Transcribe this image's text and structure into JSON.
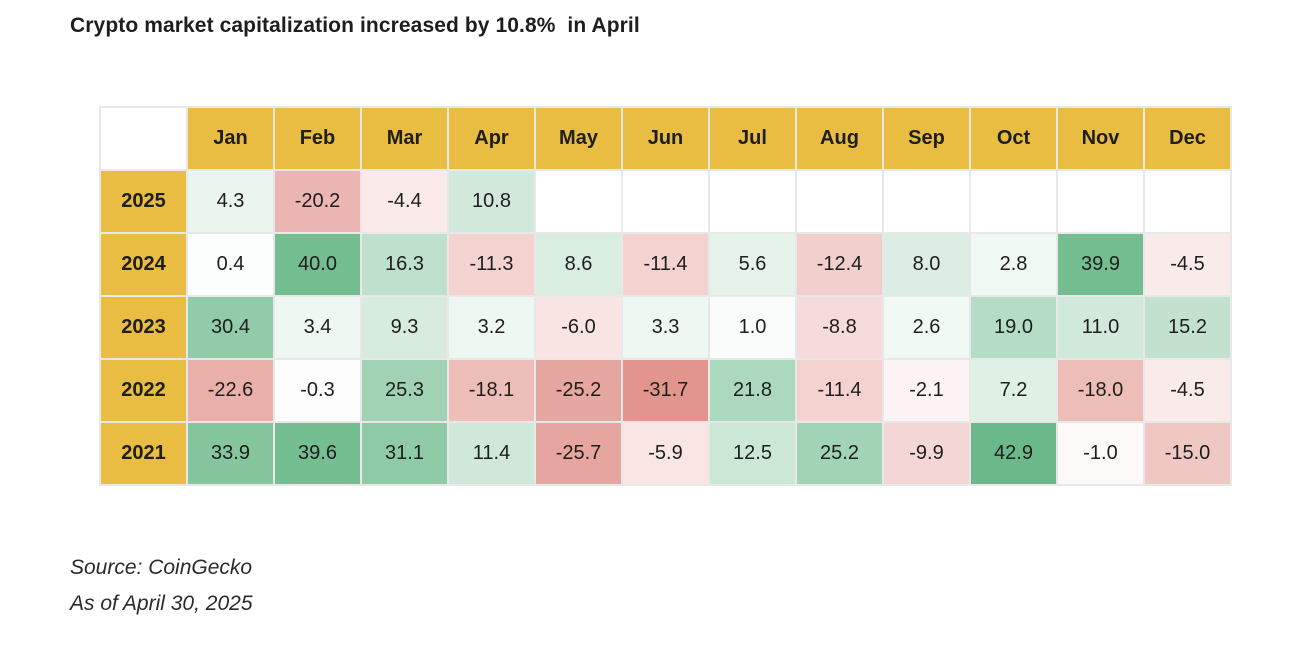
{
  "title": "Crypto market capitalization increased by 10.8%  in April",
  "source": "Source: CoinGecko",
  "as_of": "As of April 30, 2025",
  "colors": {
    "header_bg": "#e8bd42",
    "positive": "#6bb98a",
    "negative": "#d9756b",
    "neutral": "#ffffff"
  },
  "chart_data": {
    "type": "heatmap",
    "title": "Crypto market capitalization increased by 10.8%  in April",
    "columns": [
      "Jan",
      "Feb",
      "Mar",
      "Apr",
      "May",
      "Jun",
      "Jul",
      "Aug",
      "Sep",
      "Oct",
      "Nov",
      "Dec"
    ],
    "rows": [
      {
        "year": "2025",
        "values": [
          "4.3",
          "-20.2",
          "-4.4",
          "10.8",
          "",
          "",
          "",
          "",
          "",
          "",
          "",
          ""
        ]
      },
      {
        "year": "2024",
        "values": [
          "0.4",
          "40.0",
          "16.3",
          "-11.3",
          "8.6",
          "-11.4",
          "5.6",
          "-12.4",
          "8.0",
          "2.8",
          "39.9",
          "-4.5"
        ]
      },
      {
        "year": "2023",
        "values": [
          "30.4",
          "3.4",
          "9.3",
          "3.2",
          "-6.0",
          "3.3",
          "1.0",
          "-8.8",
          "2.6",
          "19.0",
          "11.0",
          "15.2"
        ]
      },
      {
        "year": "2022",
        "values": [
          "-22.6",
          "-0.3",
          "25.3",
          "-18.1",
          "-25.2",
          "-31.7",
          "21.8",
          "-11.4",
          "-2.1",
          "7.2",
          "-18.0",
          "-4.5"
        ]
      },
      {
        "year": "2021",
        "values": [
          "33.9",
          "39.6",
          "31.1",
          "11.4",
          "-25.7",
          "-5.9",
          "12.5",
          "25.2",
          "-9.9",
          "42.9",
          "-1.0",
          "-15.0"
        ]
      }
    ],
    "value_unit": "%",
    "color_scale": {
      "min": -31.7,
      "max": 42.9
    }
  }
}
